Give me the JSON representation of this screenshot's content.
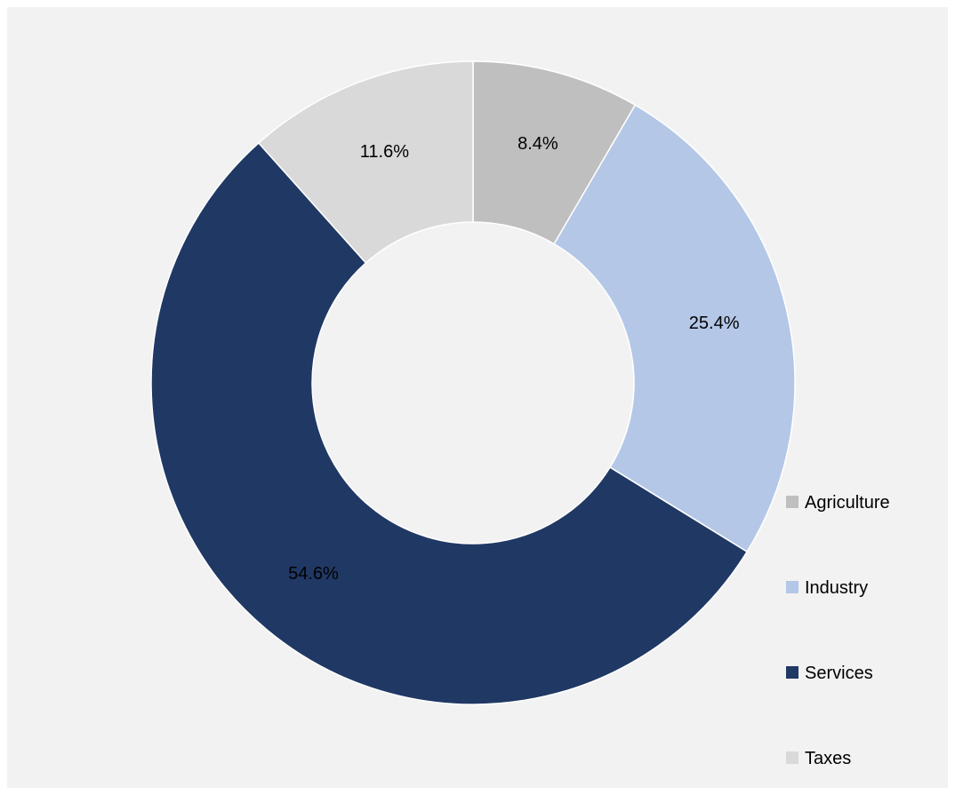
{
  "chart_data": {
    "type": "pie",
    "donut": true,
    "title": "",
    "legend_position": "right-bottom",
    "slices": [
      {
        "name": "Agriculture",
        "value": 8.4,
        "label": "8.4%",
        "color": "#bfbfbf"
      },
      {
        "name": "Industry",
        "value": 25.4,
        "label": "25.4%",
        "color": "#b4c7e7"
      },
      {
        "name": "Services",
        "value": 54.6,
        "label": "54.6%",
        "color": "#203864"
      },
      {
        "name": "Taxes",
        "value": 11.6,
        "label": "11.6%",
        "color": "#d9d9d9"
      }
    ]
  }
}
